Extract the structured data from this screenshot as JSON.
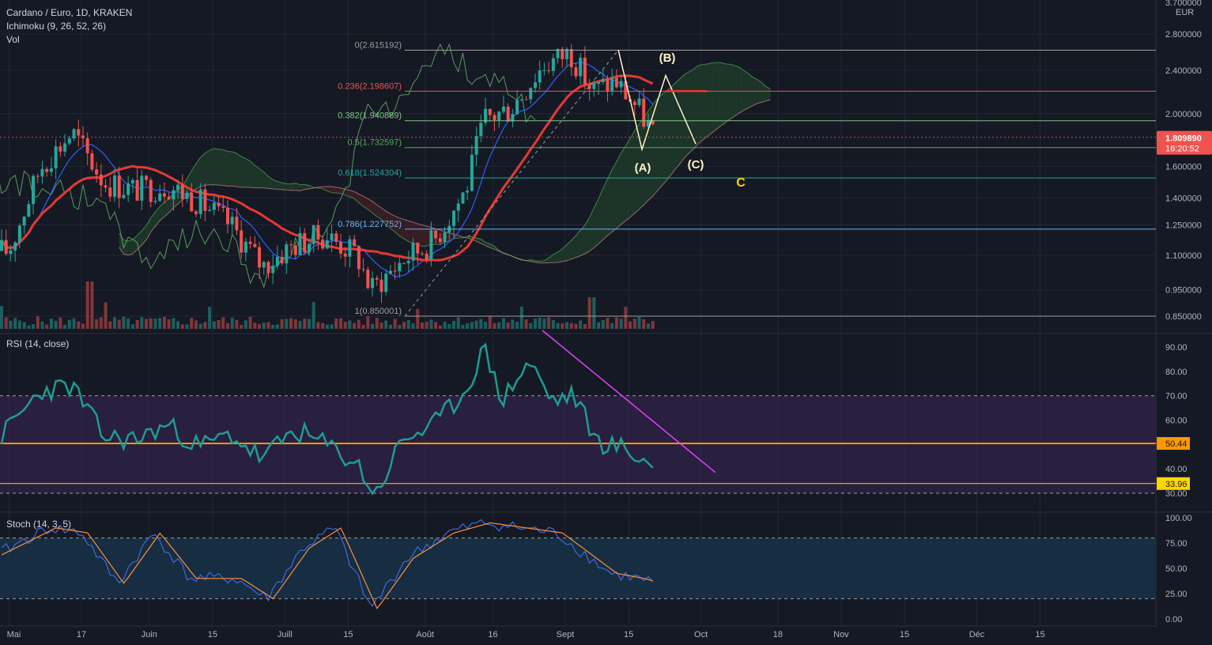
{
  "header": {
    "title": "Cardano / Euro, 1D, KRAKEN",
    "ichimoku": "Ichimoku (9, 26, 52, 26)",
    "vol": "Vol"
  },
  "colors": {
    "background": "#151924",
    "grid": "#232735",
    "axis_text": "#b2b5be",
    "up": "#26a69a",
    "down": "#ef5350",
    "kijun": "#e53935",
    "tenkan": "#2962ff",
    "chikou": "#66bb6a",
    "cloud_bull": "#1f3a2a",
    "cloud_bear": "#3d1e24",
    "rsi_line": "#1e9c93",
    "rsi_band": "#3a2456",
    "trendline": "#e040fb",
    "level_orange": "#ff9800",
    "level_yellow": "#ffd600",
    "stoch_k": "#3f6ad8",
    "stoch_d": "#ff8f3f",
    "stoch_band": "#17324a",
    "current_price_bg": "#ef5350"
  },
  "price_axis": {
    "currency": "EUR",
    "ticks": [
      "3.700000",
      "2.800000",
      "2.400000",
      "2.000000",
      "1.600000",
      "1.400000",
      "1.250000",
      "1.100000",
      "0.950000",
      "0.850000"
    ],
    "current_price": "1.809890",
    "countdown": "16:20:52",
    "scale": "log"
  },
  "rsi_axis": {
    "ticks": [
      "90.00",
      "80.00",
      "70.00",
      "60.00",
      "40.00",
      "30.00"
    ],
    "level_labels": [
      "50.44",
      "33.96"
    ]
  },
  "stoch_axis": {
    "ticks": [
      "100.00",
      "75.00",
      "50.00",
      "25.00",
      "0.00"
    ]
  },
  "time_axis": {
    "labels": [
      "Mai",
      "17",
      "Juin",
      "15",
      "Juill",
      "15",
      "Août",
      "16",
      "Sept",
      "15",
      "Oct",
      "18",
      "Nov",
      "15",
      "Déc",
      "15"
    ]
  },
  "indicators": {
    "rsi_label": "RSI (14, close)",
    "stoch_label": "Stoch (14, 3, 5)"
  },
  "fibonacci": [
    {
      "label": "0(2.615192)",
      "price": 2.615192,
      "color": "#9e9e9e"
    },
    {
      "label": "0.236(2.198607)",
      "price": 2.198607,
      "color": "#ef5350"
    },
    {
      "label": "0.382(1.940889)",
      "price": 1.940889,
      "color": "#81c784"
    },
    {
      "label": "0.5(1.732597)",
      "price": 1.732597,
      "color": "#4caf50"
    },
    {
      "label": "0.618(1.524304)",
      "price": 1.524304,
      "color": "#26a69a"
    },
    {
      "label": "0.786(1.227752)",
      "price": 1.227752,
      "color": "#64b5f6"
    },
    {
      "label": "1(0.850001)",
      "price": 0.850001,
      "color": "#9e9e9e"
    }
  ],
  "annotations": {
    "wave_a": "(A)",
    "wave_b": "(B)",
    "wave_c": "(C)",
    "target_c": "C"
  },
  "chart_data": [
    {
      "type": "line",
      "title": "Cardano / Euro, 1D, KRAKEN",
      "scale": "log",
      "ylim": [
        0.8,
        3.3
      ],
      "x_range": [
        "2021-04-29",
        "2021-12-31"
      ],
      "series": [
        {
          "values_approx": {
            "x": [
              "2021-05-01",
              "2021-05-08",
              "2021-05-15",
              "2021-05-22",
              "2021-05-29",
              "2021-06-05",
              "2021-06-12",
              "2021-06-19",
              "2021-06-26",
              "2021-07-03",
              "2021-07-10",
              "2021-07-17",
              "2021-07-20",
              "2021-07-27",
              "2021-08-03",
              "2021-08-10",
              "2021-08-14",
              "2021-08-20",
              "2021-08-27",
              "2021-09-02",
              "2021-09-07",
              "2021-09-12",
              "2021-09-17",
              "2021-09-21"
            ],
            "y": [
              1.12,
              1.6,
              1.85,
              1.5,
              1.45,
              1.48,
              1.38,
              1.25,
              1.05,
              1.15,
              1.2,
              1.1,
              0.95,
              1.08,
              1.17,
              1.45,
              1.95,
              2.05,
              2.45,
              2.6,
              2.2,
              2.3,
              2.05,
              1.81
            ]
          }
        }
      ]
    },
    {
      "type": "line",
      "title": "RSI (14, close)",
      "ylim": [
        27,
        93
      ],
      "series": [
        {
          "values_approx": {
            "x": [
              "2021-05-01",
              "2021-05-08",
              "2021-05-15",
              "2021-05-22",
              "2021-05-29",
              "2021-06-05",
              "2021-06-12",
              "2021-06-19",
              "2021-06-26",
              "2021-07-03",
              "2021-07-10",
              "2021-07-17",
              "2021-07-21",
              "2021-07-27",
              "2021-08-03",
              "2021-08-10",
              "2021-08-14",
              "2021-08-18",
              "2021-08-24",
              "2021-08-29",
              "2021-09-03",
              "2021-09-08",
              "2021-09-13",
              "2021-09-18",
              "2021-09-21"
            ],
            "y": [
              57,
              72,
              74,
              53,
              52,
              58,
              49,
              54,
              44,
              56,
              50,
              42,
              29,
              52,
              58,
              72,
              90,
              68,
              84,
              68,
              70,
              51,
              49,
              44,
              39
            ]
          }
        }
      ],
      "levels": [
        70,
        50.44,
        33.96,
        30
      ]
    },
    {
      "type": "line",
      "title": "Stoch (14, 3, 5)",
      "ylim": [
        0,
        100
      ],
      "series": [
        {
          "values_approx": {
            "x": [
              "2021-05-01",
              "2021-05-10",
              "2021-05-17",
              "2021-05-25",
              "2021-06-02",
              "2021-06-10",
              "2021-06-20",
              "2021-06-27",
              "2021-07-05",
              "2021-07-12",
              "2021-07-20",
              "2021-07-28",
              "2021-08-06",
              "2021-08-14",
              "2021-08-22",
              "2021-08-30",
              "2021-09-05",
              "2021-09-11",
              "2021-09-17",
              "2021-09-21"
            ],
            "y": [
              70,
              90,
              85,
              35,
              85,
              40,
              40,
              20,
              70,
              90,
              10,
              60,
              85,
              95,
              90,
              85,
              65,
              45,
              40,
              35
            ]
          }
        }
      ],
      "levels": [
        80,
        20
      ]
    }
  ]
}
